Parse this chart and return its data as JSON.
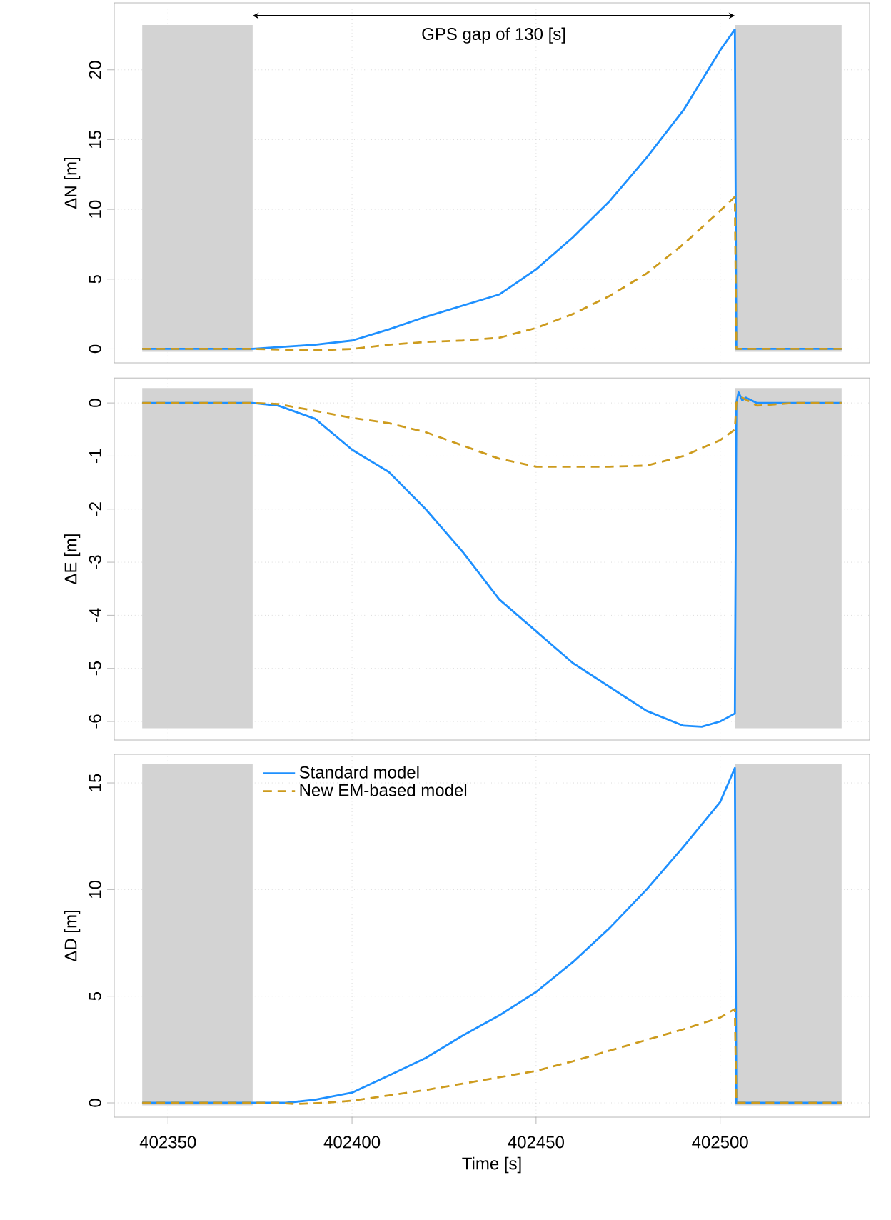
{
  "chart_data": [
    {
      "type": "line",
      "ylabel": "ΔN [m]",
      "annotations": [
        "GPS gap of 130 [s]"
      ],
      "xlim": [
        402335.4,
        402540.6
      ],
      "xticks": [
        402350,
        402400,
        402450,
        402500
      ],
      "ylim": [
        -1.0,
        24.8
      ],
      "yticks": [
        0,
        5,
        10,
        15,
        20
      ],
      "grid": true,
      "tick_labels": "y",
      "bands": [
        {
          "axis": "x",
          "from": 402343,
          "to": 402373,
          "color": "#d3d3d3"
        },
        {
          "axis": "x",
          "from": 402504,
          "to": 402533,
          "color": "#d3d3d3"
        }
      ],
      "series": [
        {
          "color": "#1e90ff",
          "line_style": "solid",
          "x": [
            402343,
            402373,
            402390,
            402400,
            402410,
            402420,
            402430,
            402440,
            402450,
            402460,
            402470,
            402480,
            402490,
            402500,
            402504,
            402504.4,
            402533
          ],
          "values": [
            0,
            0,
            0.3,
            0.6,
            1.4,
            2.3,
            3.1,
            3.9,
            5.7,
            8.0,
            10.6,
            13.7,
            17.1,
            21.4,
            22.9,
            0,
            0
          ]
        },
        {
          "color": "#cd9b1d",
          "line_style": "dashed",
          "x": [
            402343,
            402373,
            402390,
            402400,
            402410,
            402420,
            402430,
            402440,
            402450,
            402460,
            402470,
            402480,
            402490,
            402500,
            402504,
            402504.4,
            402533
          ],
          "values": [
            0,
            0,
            -0.1,
            0,
            0.3,
            0.5,
            0.6,
            0.8,
            1.5,
            2.5,
            3.8,
            5.4,
            7.5,
            9.9,
            10.9,
            0,
            0
          ]
        }
      ]
    },
    {
      "type": "line",
      "ylabel": "ΔE [m]",
      "xlim": [
        402335.4,
        402540.6
      ],
      "xticks": [
        402350,
        402400,
        402450,
        402500
      ],
      "ylim": [
        -6.35,
        0.47
      ],
      "yticks": [
        -6,
        -5,
        -4,
        -3,
        -2,
        -1,
        0
      ],
      "grid": true,
      "tick_labels": "y",
      "bands": [
        {
          "axis": "x",
          "from": 402343,
          "to": 402373,
          "color": "#d3d3d3"
        },
        {
          "axis": "x",
          "from": 402504,
          "to": 402533,
          "color": "#d3d3d3"
        }
      ],
      "series": [
        {
          "color": "#1e90ff",
          "line_style": "solid",
          "x": [
            402343,
            402373,
            402380,
            402390,
            402400,
            402410,
            402420,
            402430,
            402440,
            402450,
            402460,
            402470,
            402480,
            402490,
            402495,
            402500,
            402504,
            402504.4,
            402505,
            402506,
            402507,
            402510,
            402533
          ],
          "values": [
            0,
            0,
            -0.05,
            -0.3,
            -0.88,
            -1.3,
            -2.0,
            -2.8,
            -3.7,
            -4.3,
            -4.9,
            -5.35,
            -5.8,
            -6.08,
            -6.1,
            -6.0,
            -5.85,
            0,
            0.2,
            0.05,
            0.1,
            0,
            0
          ]
        },
        {
          "color": "#cd9b1d",
          "line_style": "dashed",
          "x": [
            402343,
            402373,
            402380,
            402390,
            402400,
            402410,
            402420,
            402430,
            402440,
            402450,
            402460,
            402470,
            402480,
            402490,
            402500,
            402504,
            402504.4,
            402506,
            402510,
            402520,
            402533
          ],
          "values": [
            0,
            0,
            -0.02,
            -0.15,
            -0.28,
            -0.38,
            -0.55,
            -0.8,
            -1.05,
            -1.2,
            -1.2,
            -1.2,
            -1.18,
            -1.0,
            -0.7,
            -0.5,
            0,
            0.1,
            -0.05,
            0,
            0
          ]
        }
      ]
    },
    {
      "type": "line",
      "xlabel": "Time [s]",
      "ylabel": "ΔD [m]",
      "xlim": [
        402335.4,
        402540.6
      ],
      "xticks": [
        402350,
        402400,
        402450,
        402500
      ],
      "ylim": [
        -0.67,
        16.34
      ],
      "yticks": [
        0,
        5,
        10,
        15
      ],
      "grid": true,
      "legend": "top left",
      "bands": [
        {
          "axis": "x",
          "from": 402343,
          "to": 402373,
          "color": "#d3d3d3"
        },
        {
          "axis": "x",
          "from": 402504,
          "to": 402533,
          "color": "#d3d3d3"
        }
      ],
      "series": [
        {
          "name": "Standard model",
          "color": "#1e90ff",
          "line_style": "solid",
          "x": [
            402343,
            402382,
            402390,
            402400,
            402410,
            402420,
            402430,
            402440,
            402450,
            402460,
            402470,
            402480,
            402490,
            402500,
            402504,
            402504.4,
            402533
          ],
          "values": [
            0,
            0,
            0.15,
            0.48,
            1.28,
            2.1,
            3.15,
            4.1,
            5.2,
            6.6,
            8.2,
            10.0,
            12.0,
            14.1,
            15.7,
            0,
            0
          ]
        },
        {
          "name": "New EM-based model",
          "color": "#cd9b1d",
          "line_style": "dashed",
          "x": [
            402343,
            402380,
            402385,
            402392,
            402400,
            402410,
            402420,
            402430,
            402440,
            402450,
            402460,
            402470,
            402480,
            402490,
            402500,
            402504,
            402504.4,
            402533
          ],
          "values": [
            0,
            0,
            -0.05,
            0,
            0.1,
            0.35,
            0.6,
            0.9,
            1.2,
            1.5,
            1.95,
            2.45,
            2.95,
            3.45,
            4.0,
            4.4,
            0,
            0
          ]
        }
      ]
    }
  ]
}
